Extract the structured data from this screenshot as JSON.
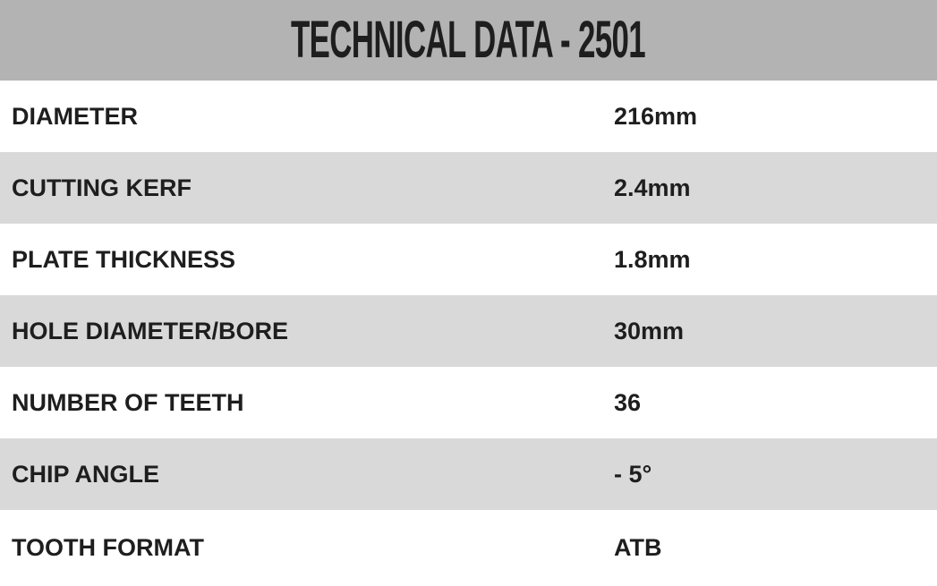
{
  "title": "TECHNICAL DATA - 2501",
  "rows": [
    {
      "label": "DIAMETER",
      "value": "216mm"
    },
    {
      "label": "CUTTING KERF",
      "value": "2.4mm"
    },
    {
      "label": "PLATE THICKNESS",
      "value": "1.8mm"
    },
    {
      "label": "HOLE DIAMETER/BORE",
      "value": "30mm"
    },
    {
      "label": "NUMBER OF TEETH",
      "value": "36"
    },
    {
      "label": "CHIP ANGLE",
      "value": "- 5°"
    },
    {
      "label": "TOOTH FORMAT",
      "value": "ATB"
    }
  ],
  "colors": {
    "header_bg": "#b3b3b3",
    "alt_row_bg": "#d9d9d9",
    "text": "#1e1e1e"
  }
}
